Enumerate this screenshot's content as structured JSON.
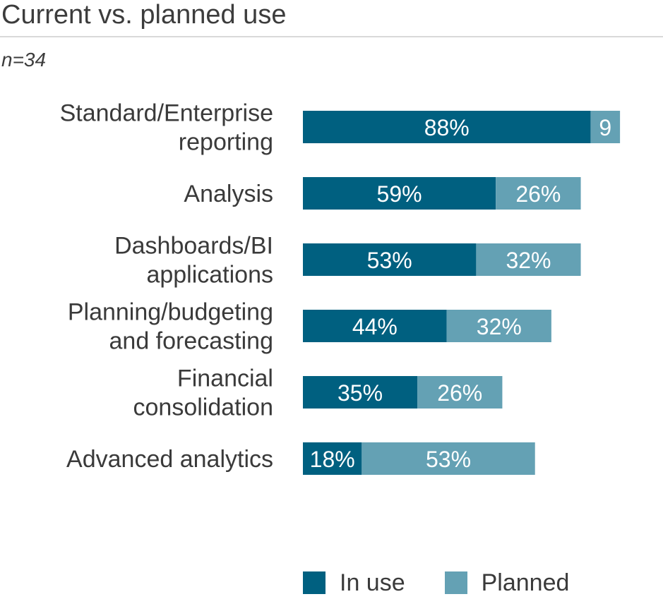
{
  "header": {
    "title": "Current vs. planned use",
    "subtitle": "n=34"
  },
  "colors": {
    "in_use": "#006080",
    "planned": "#64a1b4",
    "label_text": "#3a3a3a",
    "bar_text": "#ffffff"
  },
  "chart_data": {
    "type": "bar",
    "orientation": "horizontal",
    "stacked": true,
    "title": "Current vs. planned use",
    "xlim": [
      0,
      100
    ],
    "grid": false,
    "legend_position": "bottom",
    "categories": [
      [
        "Standard/Enterprise",
        "reporting"
      ],
      [
        "Analysis"
      ],
      [
        "Dashboards/BI",
        "applications"
      ],
      [
        "Planning/budgeting",
        "and forecasting"
      ],
      [
        "Financial",
        "consolidation"
      ],
      [
        "Advanced analytics"
      ]
    ],
    "series": [
      {
        "name": "In use",
        "values": [
          88,
          59,
          53,
          44,
          35,
          18
        ],
        "labels": [
          "88%",
          "59%",
          "53%",
          "44%",
          "35%",
          "18%"
        ]
      },
      {
        "name": "Planned",
        "values": [
          9,
          26,
          32,
          32,
          26,
          53
        ],
        "labels": [
          "9",
          "26%",
          "32%",
          "32%",
          "26%",
          "53%"
        ]
      }
    ]
  }
}
